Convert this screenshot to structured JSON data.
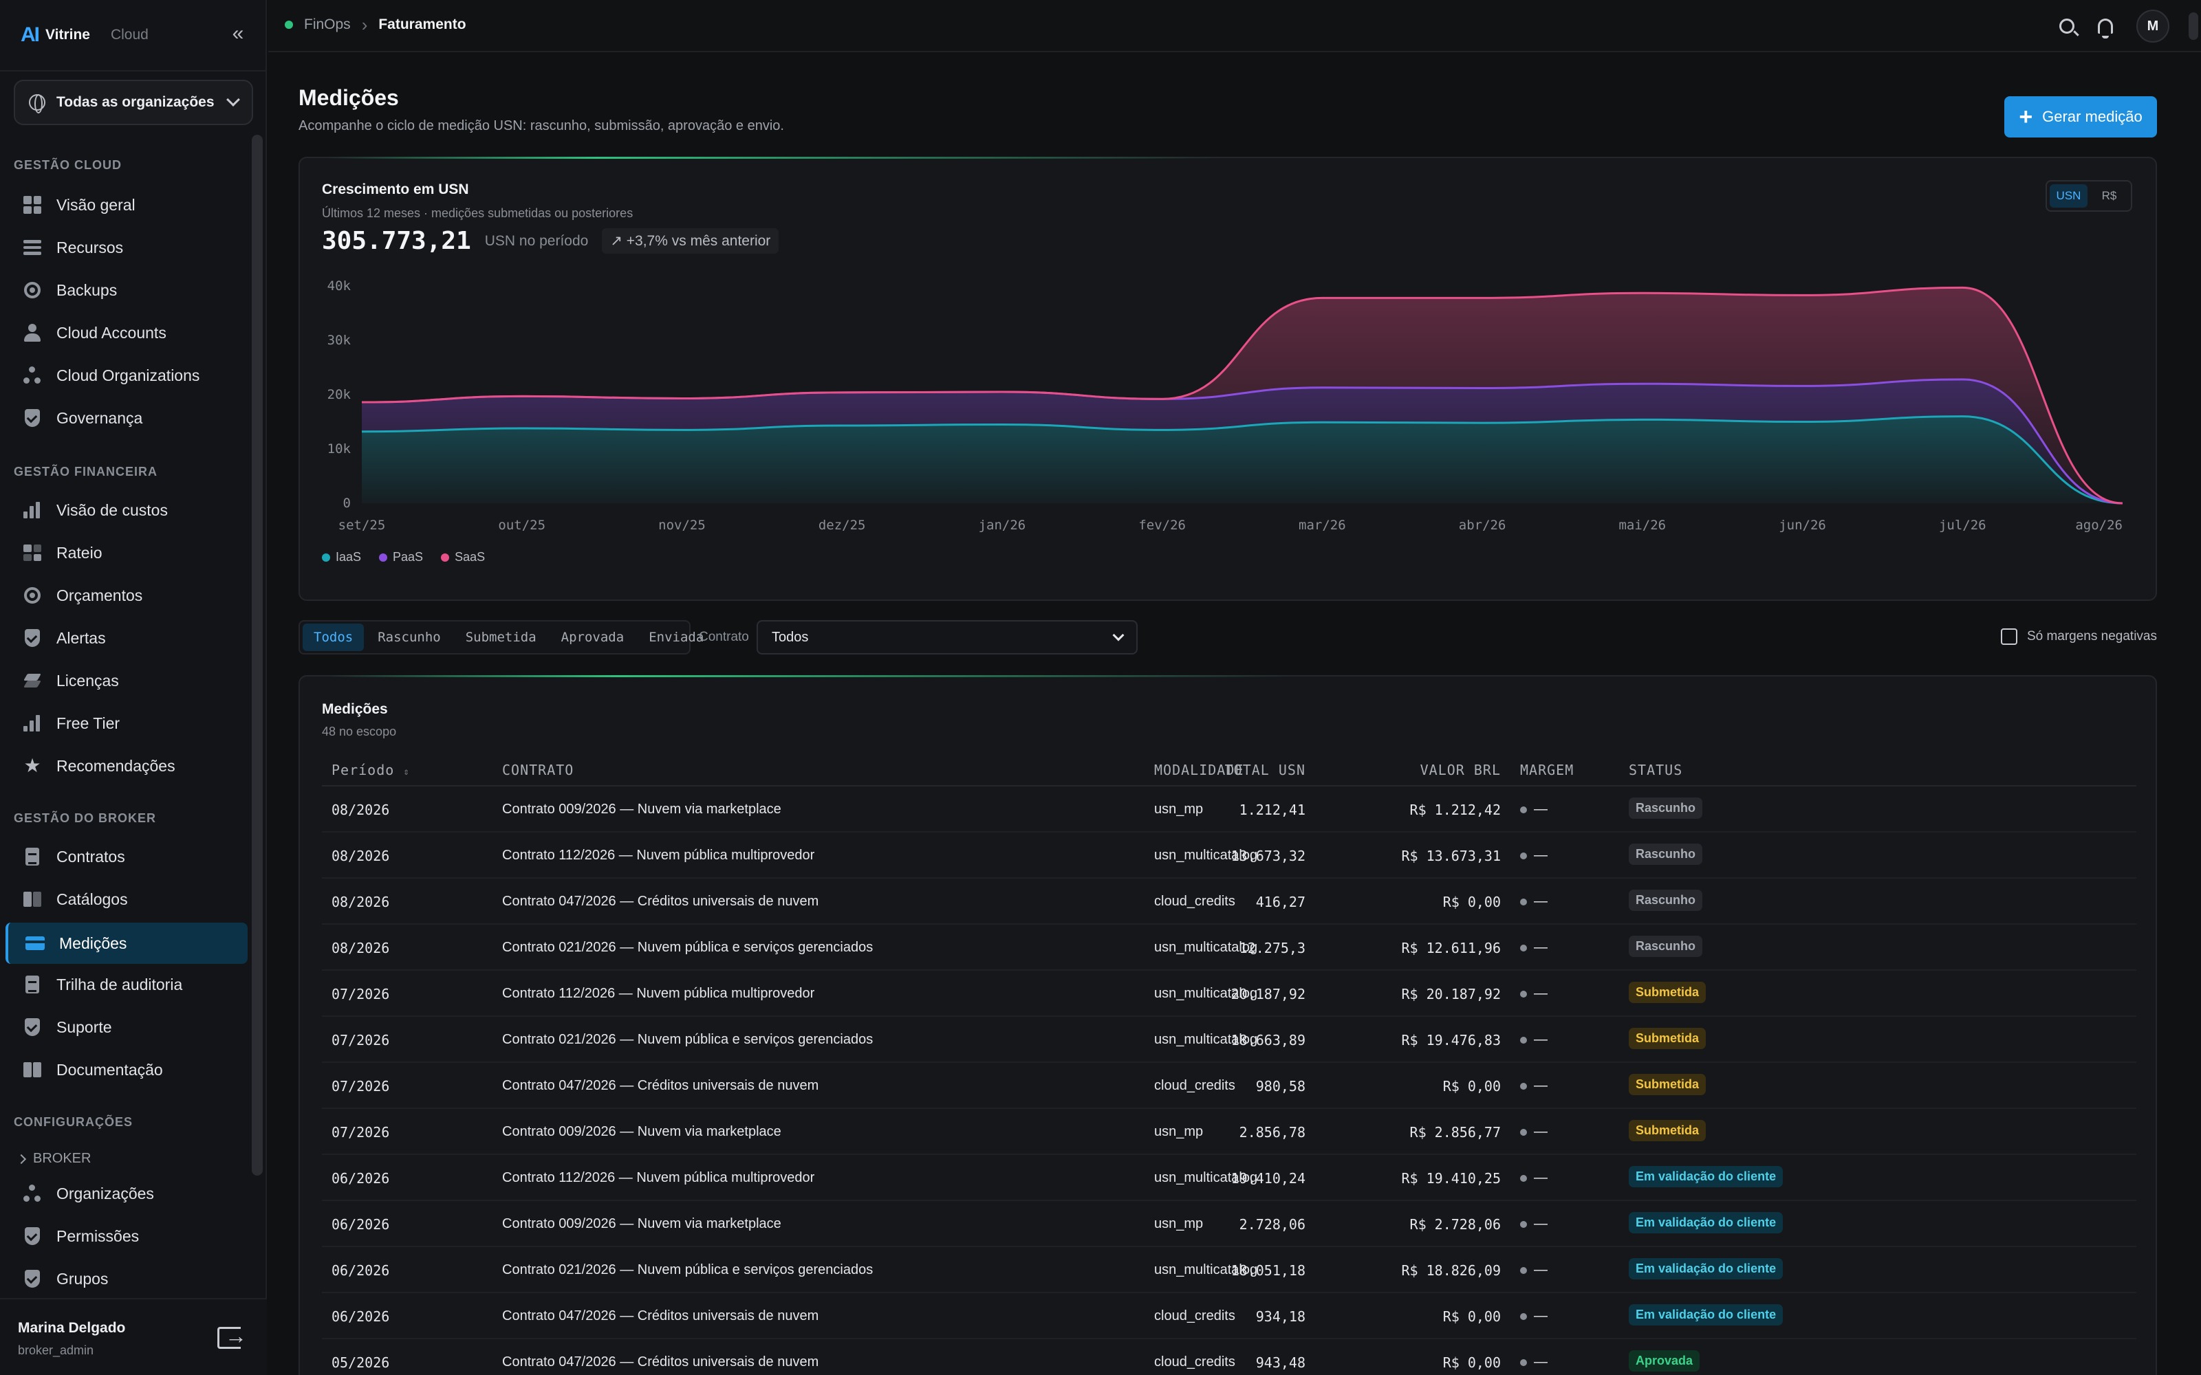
{
  "brand": {
    "logo": "AI",
    "name": "Vitrine",
    "product": "Cloud"
  },
  "sidebar": {
    "org_selector": "Todas as organizações",
    "sections": {
      "cloud": "GESTÃO CLOUD",
      "financial": "GESTÃO FINANCEIRA",
      "broker": "GESTÃO DO BROKER",
      "config": "CONFIGURAÇÕES"
    },
    "items": {
      "visao_geral": "Visão geral",
      "recursos": "Recursos",
      "backups": "Backups",
      "cloud_accounts": "Cloud Accounts",
      "cloud_organizations": "Cloud Organizations",
      "governanca": "Governança",
      "visao_custos": "Visão de custos",
      "rateio": "Rateio",
      "orcamentos": "Orçamentos",
      "alertas": "Alertas",
      "licencas": "Licenças",
      "free_tier": "Free Tier",
      "recomendacoes": "Recomendações",
      "contratos": "Contratos",
      "catalogos": "Catálogos",
      "medicoes": "Medições",
      "trilha": "Trilha de auditoria",
      "suporte": "Suporte",
      "documentacao": "Documentação",
      "broker_group": "BROKER",
      "organizacoes": "Organizações",
      "permissoes": "Permissões",
      "grupos": "Grupos"
    },
    "user": {
      "name": "Marina Delgado",
      "role": "broker_admin"
    }
  },
  "topbar": {
    "breadcrumb_root": "FinOps",
    "breadcrumb_current": "Faturamento",
    "avatar_initial": "M"
  },
  "page": {
    "title": "Medições",
    "subtitle": "Acompanhe o ciclo de medição USN: rascunho, submissão, aprovação e envio.",
    "primary_button": "Gerar medição"
  },
  "chart": {
    "title": "Crescimento em USN",
    "subtitle": "Últimos 12 meses · medições submetidas ou posteriores",
    "total": "305.773,21",
    "total_unit": "USN no período",
    "delta": "+3,7% vs mês anterior",
    "toggle": [
      "USN",
      "R$"
    ],
    "toggle_active": "USN"
  },
  "chart_data": {
    "type": "area",
    "stacked": true,
    "x": [
      "set/25",
      "out/25",
      "nov/25",
      "dez/25",
      "jan/26",
      "fev/26",
      "mar/26",
      "abr/26",
      "mai/26",
      "jun/26",
      "jul/26",
      "ago/26"
    ],
    "series": [
      {
        "name": "IaaS",
        "color": "#1ba7b8",
        "values": [
          13200,
          13800,
          13500,
          14300,
          14500,
          13500,
          14900,
          14800,
          15400,
          15000,
          16000,
          0
        ]
      },
      {
        "name": "PaaS",
        "color": "#8a4fe0",
        "values": [
          5400,
          5900,
          5800,
          6100,
          6000,
          5700,
          6400,
          6400,
          6600,
          6600,
          6800,
          0
        ]
      },
      {
        "name": "SaaS",
        "color": "#e8508a",
        "values": [
          0,
          0,
          0,
          0,
          0,
          0,
          16500,
          16600,
          16700,
          16700,
          16900,
          0
        ]
      }
    ],
    "y_ticks": [
      "0",
      "10k",
      "20k",
      "30k",
      "40k"
    ],
    "ylim": [
      0,
      40000
    ],
    "grid": false,
    "legend": "bottom-left"
  },
  "filters": {
    "status_tabs": [
      "Todos",
      "Rascunho",
      "Submetida",
      "Aprovada",
      "Enviada"
    ],
    "status_active": "Todos",
    "contract_label": "Contrato",
    "contract_value": "Todos",
    "negative_margin_label": "Só margens negativas"
  },
  "table": {
    "title": "Medições",
    "subtitle": "48 no escopo",
    "columns": {
      "periodo": "Período",
      "contrato": "CONTRATO",
      "modalidade": "MODALIDADE",
      "total_usn": "TOTAL USN",
      "valor_brl": "VALOR BRL",
      "margem": "MARGEM",
      "status": "STATUS"
    },
    "rows": [
      {
        "periodo": "08/2026",
        "contrato": "Contrato 009/2026 — Nuvem via marketplace",
        "modalidade": "usn_mp",
        "total_usn": "1.212,41",
        "valor_brl": "R$ 1.212,42",
        "margem": "—",
        "status": "Rascunho",
        "kind": "draft"
      },
      {
        "periodo": "08/2026",
        "contrato": "Contrato 112/2026 — Nuvem pública multiprovedor",
        "modalidade": "usn_multicatalog",
        "total_usn": "13.673,32",
        "valor_brl": "R$ 13.673,31",
        "margem": "—",
        "status": "Rascunho",
        "kind": "draft"
      },
      {
        "periodo": "08/2026",
        "contrato": "Contrato 047/2026 — Créditos universais de nuvem",
        "modalidade": "cloud_credits",
        "total_usn": "416,27",
        "valor_brl": "R$ 0,00",
        "margem": "—",
        "status": "Rascunho",
        "kind": "draft"
      },
      {
        "periodo": "08/2026",
        "contrato": "Contrato 021/2026 — Nuvem pública e serviços gerenciados",
        "modalidade": "usn_multicatalog",
        "total_usn": "12.275,3",
        "valor_brl": "R$ 12.611,96",
        "margem": "—",
        "status": "Rascunho",
        "kind": "draft"
      },
      {
        "periodo": "07/2026",
        "contrato": "Contrato 112/2026 — Nuvem pública multiprovedor",
        "modalidade": "usn_multicatalog",
        "total_usn": "20.187,92",
        "valor_brl": "R$ 20.187,92",
        "margem": "—",
        "status": "Submetida",
        "kind": "sub"
      },
      {
        "periodo": "07/2026",
        "contrato": "Contrato 021/2026 — Nuvem pública e serviços gerenciados",
        "modalidade": "usn_multicatalog",
        "total_usn": "18.663,89",
        "valor_brl": "R$ 19.476,83",
        "margem": "—",
        "status": "Submetida",
        "kind": "sub"
      },
      {
        "periodo": "07/2026",
        "contrato": "Contrato 047/2026 — Créditos universais de nuvem",
        "modalidade": "cloud_credits",
        "total_usn": "980,58",
        "valor_brl": "R$ 0,00",
        "margem": "—",
        "status": "Submetida",
        "kind": "sub"
      },
      {
        "periodo": "07/2026",
        "contrato": "Contrato 009/2026 — Nuvem via marketplace",
        "modalidade": "usn_mp",
        "total_usn": "2.856,78",
        "valor_brl": "R$ 2.856,77",
        "margem": "—",
        "status": "Submetida",
        "kind": "sub"
      },
      {
        "periodo": "06/2026",
        "contrato": "Contrato 112/2026 — Nuvem pública multiprovedor",
        "modalidade": "usn_multicatalog",
        "total_usn": "19.410,24",
        "valor_brl": "R$ 19.410,25",
        "margem": "—",
        "status": "Em validação do cliente",
        "kind": "val"
      },
      {
        "periodo": "06/2026",
        "contrato": "Contrato 009/2026 — Nuvem via marketplace",
        "modalidade": "usn_mp",
        "total_usn": "2.728,06",
        "valor_brl": "R$ 2.728,06",
        "margem": "—",
        "status": "Em validação do cliente",
        "kind": "val"
      },
      {
        "periodo": "06/2026",
        "contrato": "Contrato 021/2026 — Nuvem pública e serviços gerenciados",
        "modalidade": "usn_multicatalog",
        "total_usn": "18.051,18",
        "valor_brl": "R$ 18.826,09",
        "margem": "—",
        "status": "Em validação do cliente",
        "kind": "val"
      },
      {
        "periodo": "06/2026",
        "contrato": "Contrato 047/2026 — Créditos universais de nuvem",
        "modalidade": "cloud_credits",
        "total_usn": "934,18",
        "valor_brl": "R$ 0,00",
        "margem": "—",
        "status": "Em validação do cliente",
        "kind": "val"
      },
      {
        "periodo": "05/2026",
        "contrato": "Contrato 047/2026 — Créditos universais de nuvem",
        "modalidade": "cloud_credits",
        "total_usn": "943,48",
        "valor_brl": "R$ 0,00",
        "margem": "—",
        "status": "Aprovada",
        "kind": "app"
      }
    ]
  }
}
